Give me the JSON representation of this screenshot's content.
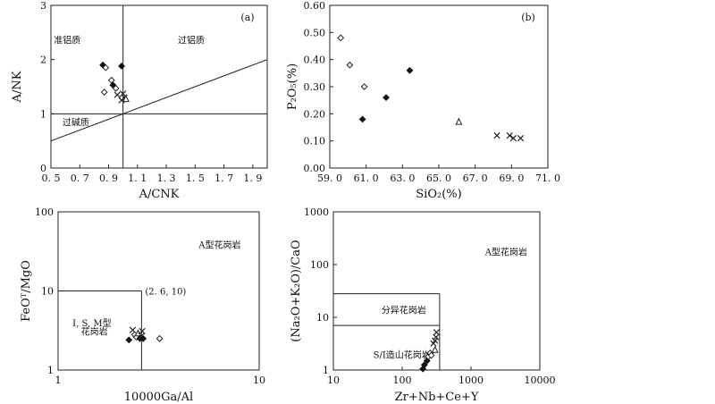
{
  "chart_data": [
    {
      "type": "scatter",
      "panel_label": "(a)",
      "xlabel": "A/CNK",
      "ylabel": "A/NK",
      "x_scale": "linear",
      "y_scale": "linear",
      "xlim": [
        0.5,
        2.0
      ],
      "ylim": [
        0,
        3
      ],
      "x_ticks": [
        0.5,
        0.7,
        0.9,
        1.1,
        1.3,
        1.5,
        1.7,
        1.9
      ],
      "x_tick_labels": [
        "0. 5",
        "0. 7",
        "0. 9",
        "1. 1",
        "1. 3",
        "1. 5",
        "1. 7",
        "1. 9"
      ],
      "y_ticks": [
        0,
        1,
        2,
        3
      ],
      "y_tick_labels": [
        "0",
        "1",
        "2",
        "3"
      ],
      "boundaries": [
        {
          "x": [
            1.0,
            1.0
          ],
          "y": [
            0,
            3
          ]
        },
        {
          "x": [
            0.5,
            2.0
          ],
          "y": [
            1.0,
            1.0
          ]
        },
        {
          "x": [
            0.5,
            2.0
          ],
          "y": [
            0.5,
            2.0
          ]
        }
      ],
      "regions": [
        {
          "label": "准铝质",
          "x": 0.52,
          "y": 2.3
        },
        {
          "label": "过铝质",
          "x": 1.38,
          "y": 2.3
        },
        {
          "label": "过碱质",
          "x": 0.58,
          "y": 0.78
        }
      ],
      "points": [
        {
          "x": 0.86,
          "y": 1.9,
          "symbol": "diamond-filled"
        },
        {
          "x": 0.88,
          "y": 1.85,
          "symbol": "diamond-open"
        },
        {
          "x": 0.99,
          "y": 1.88,
          "symbol": "diamond-filled"
        },
        {
          "x": 0.92,
          "y": 1.62,
          "symbol": "diamond-open"
        },
        {
          "x": 0.93,
          "y": 1.53,
          "symbol": "diamond-filled"
        },
        {
          "x": 0.95,
          "y": 1.47,
          "symbol": "diamond-open"
        },
        {
          "x": 0.87,
          "y": 1.4,
          "symbol": "diamond-open"
        },
        {
          "x": 0.96,
          "y": 1.35,
          "symbol": "cross"
        },
        {
          "x": 1.0,
          "y": 1.37,
          "symbol": "cross"
        },
        {
          "x": 1.01,
          "y": 1.3,
          "symbol": "cross"
        },
        {
          "x": 1.02,
          "y": 1.27,
          "symbol": "triangle-open"
        },
        {
          "x": 0.99,
          "y": 1.25,
          "symbol": "cross"
        }
      ]
    },
    {
      "type": "scatter",
      "panel_label": "(b)",
      "xlabel": "SiO₂(%)",
      "ylabel": "P₂O₅(%)",
      "x_scale": "linear",
      "y_scale": "linear",
      "xlim": [
        59.0,
        71.0
      ],
      "ylim": [
        0,
        0.6
      ],
      "x_ticks": [
        59,
        61,
        63,
        65,
        67,
        69,
        71
      ],
      "x_tick_labels": [
        "59. 0",
        "61. 0",
        "63. 0",
        "65. 0",
        "67. 0",
        "69. 0",
        "71. 0"
      ],
      "y_ticks": [
        0,
        0.1,
        0.2,
        0.3,
        0.4,
        0.5,
        0.6
      ],
      "y_tick_labels": [
        "0.00",
        "0.10",
        "0.20",
        "0.30",
        "0.40",
        "0.50",
        "0.60"
      ],
      "points": [
        {
          "x": 59.6,
          "y": 0.48,
          "symbol": "diamond-open"
        },
        {
          "x": 60.1,
          "y": 0.38,
          "symbol": "diamond-open"
        },
        {
          "x": 60.9,
          "y": 0.3,
          "symbol": "diamond-open"
        },
        {
          "x": 60.8,
          "y": 0.18,
          "symbol": "diamond-filled"
        },
        {
          "x": 62.1,
          "y": 0.26,
          "symbol": "diamond-filled"
        },
        {
          "x": 63.4,
          "y": 0.36,
          "symbol": "diamond-filled"
        },
        {
          "x": 66.1,
          "y": 0.17,
          "symbol": "triangle-open"
        },
        {
          "x": 68.2,
          "y": 0.12,
          "symbol": "cross"
        },
        {
          "x": 68.9,
          "y": 0.12,
          "symbol": "cross"
        },
        {
          "x": 69.1,
          "y": 0.11,
          "symbol": "cross"
        },
        {
          "x": 69.5,
          "y": 0.11,
          "symbol": "cross"
        }
      ]
    },
    {
      "type": "scatter",
      "panel_label": "",
      "xlabel": "10000Ga/Al",
      "ylabel": "FeOᵀ/MgO",
      "x_scale": "log",
      "y_scale": "log",
      "xlim": [
        1,
        10
      ],
      "ylim": [
        1,
        100
      ],
      "x_ticks": [
        1,
        10
      ],
      "x_tick_labels": [
        "1",
        "10"
      ],
      "y_ticks": [
        1,
        10,
        100
      ],
      "y_tick_labels": [
        "1",
        "10",
        "100"
      ],
      "boundaries": [
        {
          "x": [
            1,
            2.6
          ],
          "y": [
            10,
            10
          ]
        },
        {
          "x": [
            2.6,
            2.6
          ],
          "y": [
            1,
            10
          ]
        }
      ],
      "annotation": "(2. 6, 10)",
      "regions": [
        {
          "label": "A型花岗岩",
          "x": 5.0,
          "y": 35
        },
        {
          "label": "I, S, M型",
          "x": 1.18,
          "y": 3.6
        },
        {
          "label": "花岗岩",
          "x": 1.3,
          "y": 2.8
        }
      ],
      "points": [
        {
          "x": 2.25,
          "y": 2.4,
          "symbol": "diamond-filled"
        },
        {
          "x": 2.35,
          "y": 3.2,
          "symbol": "cross"
        },
        {
          "x": 2.4,
          "y": 2.8,
          "symbol": "diamond-open"
        },
        {
          "x": 2.45,
          "y": 2.6,
          "symbol": "diamond-open"
        },
        {
          "x": 2.5,
          "y": 2.9,
          "symbol": "triangle-open"
        },
        {
          "x": 2.55,
          "y": 2.5,
          "symbol": "diamond-filled"
        },
        {
          "x": 2.6,
          "y": 2.7,
          "symbol": "cross"
        },
        {
          "x": 2.62,
          "y": 3.1,
          "symbol": "cross"
        },
        {
          "x": 2.65,
          "y": 2.5,
          "symbol": "diamond-filled"
        },
        {
          "x": 3.2,
          "y": 2.5,
          "symbol": "diamond-open"
        }
      ]
    },
    {
      "type": "scatter",
      "panel_label": "",
      "xlabel": "Zr+Nb+Ce+Y",
      "ylabel": "(Na₂O+K₂O)/CaO",
      "x_scale": "log",
      "y_scale": "log",
      "xlim": [
        10,
        10000
      ],
      "ylim": [
        1,
        1000
      ],
      "x_ticks": [
        10,
        100,
        1000,
        10000
      ],
      "x_tick_labels": [
        "10",
        "100",
        "1000",
        "10000"
      ],
      "y_ticks": [
        1,
        10,
        100,
        1000
      ],
      "y_tick_labels": [
        "1",
        "10",
        "100",
        "1000"
      ],
      "boundaries": [
        {
          "x": [
            10,
            350
          ],
          "y": [
            28,
            28
          ]
        },
        {
          "x": [
            350,
            350
          ],
          "y": [
            1,
            28
          ]
        },
        {
          "x": [
            10,
            350
          ],
          "y": [
            7,
            7
          ]
        }
      ],
      "regions": [
        {
          "label": "A型花岗岩",
          "x": 1600,
          "y": 150
        },
        {
          "label": "分异花岗岩",
          "x": 50,
          "y": 12
        },
        {
          "label": "S/I造山花岗岩",
          "x": 38,
          "y": 1.7
        }
      ],
      "points": [
        {
          "x": 200,
          "y": 1.05,
          "symbol": "diamond-filled"
        },
        {
          "x": 210,
          "y": 1.25,
          "symbol": "diamond-filled"
        },
        {
          "x": 230,
          "y": 1.5,
          "symbol": "diamond-filled"
        },
        {
          "x": 240,
          "y": 1.8,
          "symbol": "diamond-open"
        },
        {
          "x": 255,
          "y": 2.1,
          "symbol": "diamond-open"
        },
        {
          "x": 265,
          "y": 1.9,
          "symbol": "diamond-open"
        },
        {
          "x": 300,
          "y": 2.4,
          "symbol": "triangle-open"
        },
        {
          "x": 285,
          "y": 3.2,
          "symbol": "cross"
        },
        {
          "x": 300,
          "y": 3.6,
          "symbol": "cross"
        },
        {
          "x": 310,
          "y": 4.2,
          "symbol": "cross"
        },
        {
          "x": 315,
          "y": 5.2,
          "symbol": "cross"
        }
      ]
    }
  ]
}
